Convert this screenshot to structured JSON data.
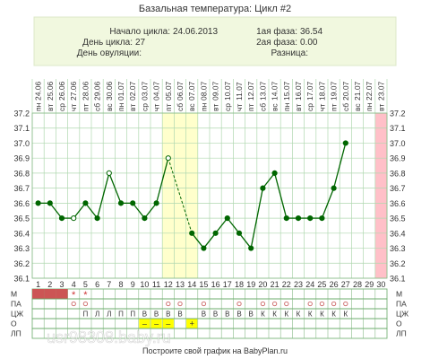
{
  "chart_data": {
    "type": "line",
    "title": "Базальная температура: Цикл #2",
    "info": {
      "cycle_start_label": "Начало цикла:",
      "cycle_start_value": "24.06.2013",
      "cycle_day_label": "День цикла:",
      "cycle_day_value": "27",
      "ovulation_day_label": "День овуляции:",
      "ovulation_day_value": "",
      "phase1_label": "1ая фаза:",
      "phase1_value": "36.54",
      "phase2_label": "2ая фаза:",
      "phase2_value": "0.00",
      "difference_label": "Разница:",
      "difference_value": ""
    },
    "dates": [
      "24.06",
      "25.06",
      "26.06",
      "27.06",
      "28.06",
      "29.06",
      "30.06",
      "01.07",
      "02.07",
      "03.07",
      "04.07",
      "05.07",
      "06.07",
      "07.07",
      "08.07",
      "09.07",
      "10.07",
      "11.07",
      "12.07",
      "13.07",
      "14.07",
      "15.07",
      "16.07",
      "17.07",
      "18.07",
      "19.07",
      "20.07",
      "21.07",
      "22.07",
      "23.07"
    ],
    "weekdays": [
      "пн",
      "вт",
      "ср",
      "чт",
      "пт",
      "сб",
      "вс",
      "пн",
      "вт",
      "ср",
      "чт",
      "пт",
      "сб",
      "вс",
      "пн",
      "вт",
      "ср",
      "чт",
      "пт",
      "сб",
      "вс",
      "пн",
      "вт",
      "ср",
      "чт",
      "пт",
      "сб",
      "вс",
      "пн",
      "вт"
    ],
    "days": [
      1,
      2,
      3,
      4,
      5,
      6,
      7,
      8,
      9,
      10,
      11,
      12,
      13,
      14,
      15,
      16,
      17,
      18,
      19,
      20,
      21,
      22,
      23,
      24,
      25,
      26,
      27,
      28,
      29,
      30
    ],
    "y_ticks": [
      37.2,
      37.1,
      37.0,
      36.9,
      36.8,
      36.7,
      36.6,
      36.5,
      36.4,
      36.3,
      36.2,
      36.1
    ],
    "ylim": [
      36.1,
      37.2
    ],
    "temperatures": [
      36.6,
      36.6,
      36.5,
      36.5,
      36.6,
      36.5,
      36.8,
      36.6,
      36.6,
      36.5,
      36.6,
      36.9,
      null,
      36.4,
      36.3,
      36.4,
      36.5,
      36.4,
      36.3,
      36.7,
      36.8,
      36.5,
      36.5,
      36.5,
      36.5,
      36.7,
      37.0,
      null,
      null,
      null
    ],
    "hollow_points": [
      4,
      7,
      12
    ],
    "dashed_segment": [
      12,
      14
    ],
    "highlight_days": [
      12,
      13,
      14
    ],
    "highlight_color": "#ffffcc",
    "current_day_marker": 30,
    "current_day_color": "#ffc0c8",
    "line_color": "#006600",
    "grid_color": "#b0d8b0",
    "row_labels": [
      "М",
      "ПА",
      "ЦЖ",
      "О",
      "ЛП"
    ],
    "rows": {
      "menstruation": [
        "solid",
        "solid",
        "solid",
        "star",
        "star",
        "",
        "",
        "",
        "",
        "",
        "",
        "",
        "",
        "",
        "",
        "",
        "",
        "",
        "",
        "",
        "",
        "",
        "",
        "",
        "",
        "",
        "",
        "",
        "",
        ""
      ],
      "intercourse": [
        "",
        "",
        "",
        "o",
        "o",
        "",
        "",
        "",
        "",
        "",
        "",
        "o",
        "o",
        "",
        "o",
        "",
        "",
        "o",
        "",
        "o",
        "o",
        "o",
        "",
        "o",
        "o",
        "o",
        "o",
        "",
        "",
        ""
      ],
      "cervical_mucus": [
        "",
        "",
        "",
        "",
        "П",
        "Л",
        "Л",
        "П",
        "П",
        "В",
        "В",
        "В",
        "В",
        "",
        "В",
        "В",
        "В",
        "В",
        "В",
        "К",
        "К",
        "К",
        "К",
        "К",
        "К",
        "К",
        "К",
        "",
        "",
        ""
      ],
      "ovulation_test": [
        "",
        "",
        "",
        "",
        "",
        "",
        "",
        "",
        "",
        "–",
        "–",
        "–",
        "",
        "+",
        "",
        "",
        "",
        "",
        "",
        "",
        "",
        "",
        "",
        "",
        "",
        "",
        "",
        "",
        "",
        ""
      ],
      "lp": [
        "",
        "",
        "",
        "",
        "",
        "",
        "",
        "",
        "",
        "",
        "",
        "",
        "",
        "",
        "",
        "",
        "",
        "",
        "",
        "",
        "",
        "",
        "",
        "",
        "",
        "",
        "",
        "",
        "",
        ""
      ]
    },
    "row_fill_colors": {
      "star": "#cc3333",
      "mark": "#ffff00",
      "solid": "#cc5555"
    },
    "footer": "Построите свой график на BabyPlan.ru",
    "watermark": "usr98308.baby.ru"
  }
}
